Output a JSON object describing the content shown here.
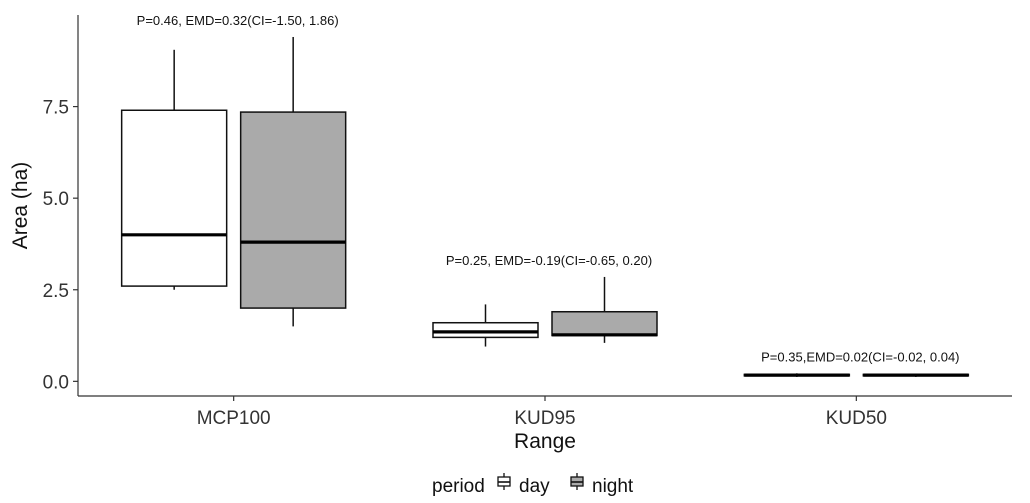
{
  "chart_data": {
    "type": "boxplot",
    "xlabel": "Range",
    "ylabel": "Area (ha)",
    "ylim": [
      -0.4,
      10.0
    ],
    "yticks": [
      "0.0",
      "2.5",
      "5.0",
      "7.5"
    ],
    "ytick_values": [
      0.0,
      2.5,
      5.0,
      7.5
    ],
    "grid": false,
    "categories": [
      "MCP100",
      "KUD95",
      "KUD50"
    ],
    "legend": {
      "title": "period",
      "placement": "bottom",
      "items": [
        {
          "name": "day",
          "color": "#ffffff"
        },
        {
          "name": "night",
          "color": "#aaaaaa"
        }
      ]
    },
    "series": [
      {
        "name": "day",
        "color": "#ffffff",
        "boxes": [
          {
            "category": "MCP100",
            "whisker_low": 2.5,
            "q1": 2.6,
            "median": 4.0,
            "q3": 7.4,
            "whisker_high": 9.05
          },
          {
            "category": "KUD95",
            "whisker_low": 0.95,
            "q1": 1.2,
            "median": 1.35,
            "q3": 1.6,
            "whisker_high": 2.1
          },
          {
            "category": "KUD50",
            "whisker_low": 0.12,
            "q1": 0.15,
            "median": 0.17,
            "q3": 0.19,
            "whisker_high": 0.22
          }
        ]
      },
      {
        "name": "night",
        "color": "#aaaaaa",
        "boxes": [
          {
            "category": "MCP100",
            "whisker_low": 1.5,
            "q1": 2.0,
            "median": 3.8,
            "q3": 7.35,
            "whisker_high": 9.4
          },
          {
            "category": "KUD95",
            "whisker_low": 1.05,
            "q1": 1.25,
            "median": 1.27,
            "q3": 1.9,
            "whisker_high": 2.85
          },
          {
            "category": "KUD50",
            "whisker_low": 0.12,
            "q1": 0.15,
            "median": 0.17,
            "q3": 0.19,
            "whisker_high": 0.21
          }
        ]
      }
    ],
    "annotations": [
      {
        "category": "MCP100",
        "text": "P=0.46, EMD=0.32(CI=-1.50, 1.86)"
      },
      {
        "category": "KUD95",
        "text": "P=0.25, EMD=-0.19(CI=-0.65, 0.20)"
      },
      {
        "category": "KUD50",
        "text": "P=0.35,EMD=0.02(CI=-0.02, 0.04)"
      }
    ]
  }
}
